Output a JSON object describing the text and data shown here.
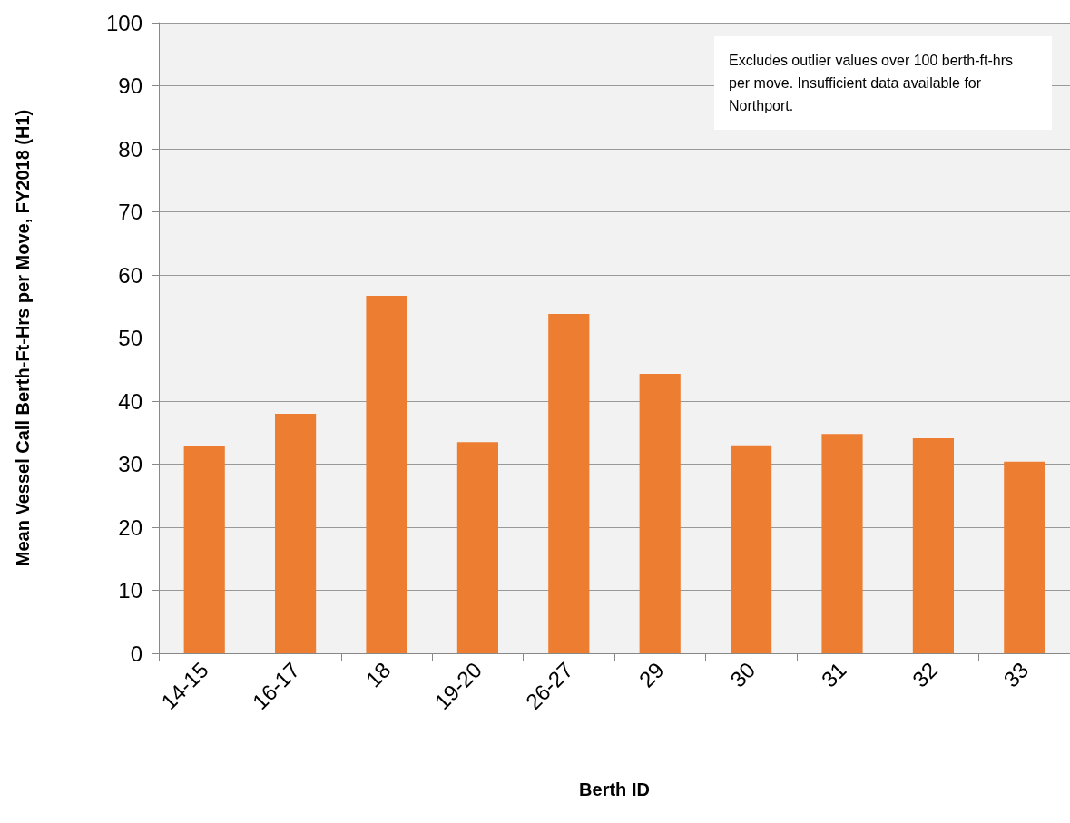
{
  "chart_data": {
    "type": "bar",
    "xlabel": "Berth ID",
    "ylabel": "Mean Vessel Call Berth-Ft-Hrs per Move, FY2018 (H1)",
    "categories": [
      "14-15",
      "16-17",
      "18",
      "19-20",
      "26-27",
      "29",
      "30",
      "31",
      "32",
      "33"
    ],
    "values": [
      32.8,
      38.0,
      56.7,
      33.5,
      53.8,
      44.3,
      33.0,
      34.8,
      34.1,
      30.4
    ],
    "color": "#ed7d31",
    "ylim": [
      0,
      100
    ],
    "yticks": [
      0,
      10,
      20,
      30,
      40,
      50,
      60,
      70,
      80,
      90,
      100
    ],
    "grid": "y",
    "annotations": [
      "Excludes outlier values over 100 berth-ft-hrs per move. Insufficient data available for Northport."
    ]
  }
}
